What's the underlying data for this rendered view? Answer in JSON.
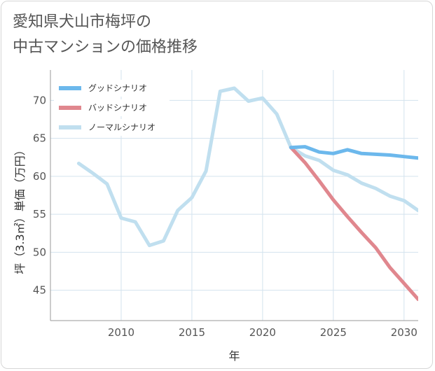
{
  "title": {
    "line1": "愛知県犬山市梅坪の",
    "line2": "中古マンションの価格推移"
  },
  "colors": {
    "good": "#6cb8ec",
    "bad": "#e0878e",
    "normal": "#c0dfef",
    "grid": "#d3e3ee",
    "axis": "#999999"
  },
  "chart_data": {
    "type": "line",
    "title": "愛知県犬山市梅坪の中古マンションの価格推移",
    "xlabel": "年",
    "ylabel": "坪（3.3㎡）単価（万円）",
    "xlim": [
      2005,
      2031
    ],
    "ylim": [
      41,
      74
    ],
    "xticks": [
      2010,
      2015,
      2020,
      2025,
      2030
    ],
    "yticks": [
      45,
      50,
      55,
      60,
      65,
      70
    ],
    "grid": true,
    "legend_position": "top-left",
    "series": [
      {
        "name": "グッドシナリオ",
        "color": "#6cb8ec",
        "x": [
          2022,
          2023,
          2024,
          2025,
          2026,
          2027,
          2028,
          2029,
          2030,
          2031
        ],
        "y": [
          63.8,
          63.9,
          63.2,
          63.0,
          63.5,
          63.0,
          62.9,
          62.8,
          62.6,
          62.4
        ]
      },
      {
        "name": "バッドシナリオ",
        "color": "#e0878e",
        "x": [
          2022,
          2023,
          2024,
          2025,
          2026,
          2027,
          2028,
          2029,
          2030,
          2031
        ],
        "y": [
          63.8,
          61.8,
          59.4,
          56.9,
          54.7,
          52.6,
          50.6,
          48.0,
          45.9,
          43.8
        ]
      },
      {
        "name": "ノーマルシナリオ",
        "color": "#c0dfef",
        "x": [
          2007,
          2008,
          2009,
          2010,
          2011,
          2012,
          2013,
          2014,
          2015,
          2016,
          2017,
          2018,
          2019,
          2020,
          2021,
          2022,
          2023,
          2024,
          2025,
          2026,
          2027,
          2028,
          2029,
          2030,
          2031
        ],
        "y": [
          61.7,
          60.4,
          59.0,
          54.5,
          54.0,
          50.9,
          51.5,
          55.5,
          57.2,
          60.7,
          71.2,
          71.6,
          69.9,
          70.3,
          68.2,
          63.8,
          62.7,
          62.1,
          60.8,
          60.2,
          59.1,
          58.4,
          57.4,
          56.8,
          55.5
        ]
      }
    ]
  }
}
